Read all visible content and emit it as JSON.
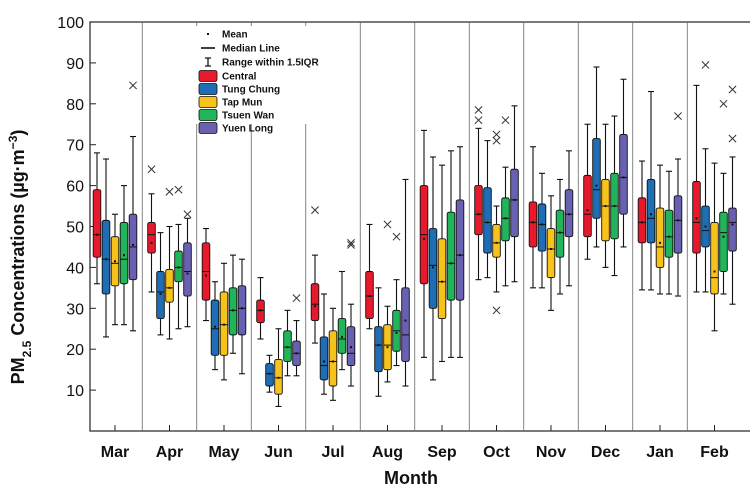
{
  "chart_data": {
    "type": "box",
    "title": "",
    "ylabel": {
      "prefix": "PM",
      "sub": "2.5",
      "middle": " Concentrations (µg·m",
      "sup": "−3",
      "suffix": ")"
    },
    "xlabel": "Month",
    "ylim": [
      0,
      100
    ],
    "yticks": [
      10,
      20,
      30,
      40,
      50,
      60,
      70,
      80,
      90,
      100
    ],
    "legend_placement": "top-left",
    "legend_items": [
      {
        "kind": "mean",
        "label": "Mean"
      },
      {
        "kind": "median",
        "label": "Median Line"
      },
      {
        "kind": "whisker",
        "label": "Range within 1.5IQR"
      }
    ],
    "categories": [
      "Mar",
      "Apr",
      "May",
      "Jun",
      "Jul",
      "Aug",
      "Sep",
      "Oct",
      "Nov",
      "Dec",
      "Jan",
      "Feb"
    ],
    "series": [
      {
        "name": "Central",
        "color": "#e8192c",
        "boxes": [
          {
            "lw": 36,
            "q1": 42.5,
            "med": 48,
            "q3": 59,
            "uw": 68,
            "mean": 48,
            "out": []
          },
          {
            "lw": 34,
            "q1": 43.5,
            "med": 48,
            "q3": 51,
            "uw": 58,
            "mean": 46,
            "out": [
              64
            ]
          },
          {
            "lw": 27,
            "q1": 32,
            "med": 39,
            "q3": 46,
            "uw": 49.5,
            "mean": 38,
            "out": []
          },
          {
            "lw": 22.5,
            "q1": 26.5,
            "med": 29.5,
            "q3": 32,
            "uw": 37.5,
            "mean": 29.5,
            "out": []
          },
          {
            "lw": 21.5,
            "q1": 27,
            "med": 31,
            "q3": 36,
            "uw": 43,
            "mean": 30.5,
            "out": [
              54
            ]
          },
          {
            "lw": 25,
            "q1": 27.5,
            "med": 33,
            "q3": 39,
            "uw": 50.5,
            "mean": 33,
            "out": []
          },
          {
            "lw": 18,
            "q1": 36,
            "med": 48,
            "q3": 60,
            "uw": 73.5,
            "mean": 47,
            "out": []
          },
          {
            "lw": 37,
            "q1": 48,
            "med": 53,
            "q3": 60,
            "uw": 74,
            "mean": 53,
            "out": [
              78.5,
              76
            ]
          },
          {
            "lw": 35,
            "q1": 45,
            "med": 51,
            "q3": 56,
            "uw": 69.5,
            "mean": 51,
            "out": []
          },
          {
            "lw": 42,
            "q1": 47.5,
            "med": 53,
            "q3": 62.5,
            "uw": 75,
            "mean": 54,
            "out": []
          },
          {
            "lw": 34.5,
            "q1": 46,
            "med": 51,
            "q3": 57,
            "uw": 66,
            "mean": 51,
            "out": []
          },
          {
            "lw": 34,
            "q1": 43.5,
            "med": 51,
            "q3": 61,
            "uw": 84.5,
            "mean": 52,
            "out": []
          }
        ]
      },
      {
        "name": "Tung Chung",
        "color": "#1f6db4",
        "boxes": [
          {
            "lw": 23,
            "q1": 33.5,
            "med": 42,
            "q3": 51.5,
            "uw": 66.5,
            "mean": 42,
            "out": []
          },
          {
            "lw": 23.5,
            "q1": 27.5,
            "med": 34,
            "q3": 39,
            "uw": 48.5,
            "mean": 33.5,
            "out": []
          },
          {
            "lw": 15,
            "q1": 18.5,
            "med": 25,
            "q3": 32,
            "uw": 36.5,
            "mean": 25.5,
            "out": []
          },
          {
            "lw": 9.5,
            "q1": 11,
            "med": 14,
            "q3": 16.5,
            "uw": 18.5,
            "mean": 14,
            "out": []
          },
          {
            "lw": 9,
            "q1": 12.5,
            "med": 16,
            "q3": 23,
            "uw": 33.5,
            "mean": 17,
            "out": []
          },
          {
            "lw": 8.5,
            "q1": 14.5,
            "med": 21,
            "q3": 25.5,
            "uw": 35,
            "mean": 21,
            "out": []
          },
          {
            "lw": 12.5,
            "q1": 30,
            "med": 40.5,
            "q3": 49.5,
            "uw": 67,
            "mean": 40,
            "out": []
          },
          {
            "lw": 37.5,
            "q1": 43.5,
            "med": 51,
            "q3": 59.5,
            "uw": 71,
            "mean": 51,
            "out": []
          },
          {
            "lw": 35,
            "q1": 44,
            "med": 50.5,
            "q3": 55.5,
            "uw": 63,
            "mean": 50.5,
            "out": []
          },
          {
            "lw": 45,
            "q1": 52,
            "med": 59,
            "q3": 71.5,
            "uw": 89,
            "mean": 60,
            "out": []
          },
          {
            "lw": 34.5,
            "q1": 46,
            "med": 52,
            "q3": 61.5,
            "uw": 83,
            "mean": 53,
            "out": []
          },
          {
            "lw": 34,
            "q1": 45,
            "med": 49,
            "q3": 55,
            "uw": 69,
            "mean": 50,
            "out": [
              89.5
            ]
          }
        ]
      },
      {
        "name": "Tap Mun",
        "color": "#f7c21a",
        "boxes": [
          {
            "lw": 26,
            "q1": 35.5,
            "med": 41,
            "q3": 47.5,
            "uw": 53,
            "mean": 41.5,
            "out": []
          },
          {
            "lw": 22.5,
            "q1": 31.5,
            "med": 35,
            "q3": 39.5,
            "uw": 50,
            "mean": 35,
            "out": [
              58.5
            ]
          },
          {
            "lw": 12.5,
            "q1": 18.5,
            "med": 26,
            "q3": 34,
            "uw": 41,
            "mean": 26,
            "out": []
          },
          {
            "lw": 6,
            "q1": 9,
            "med": 13,
            "q3": 17.5,
            "uw": 25,
            "mean": 13,
            "out": []
          },
          {
            "lw": 7.5,
            "q1": 11,
            "med": 17,
            "q3": 24.5,
            "uw": 30,
            "mean": 17,
            "out": []
          },
          {
            "lw": 12,
            "q1": 15,
            "med": 21,
            "q3": 26,
            "uw": 30.5,
            "mean": 20.5,
            "out": [
              50.5
            ]
          },
          {
            "lw": 17,
            "q1": 27.5,
            "med": 36.5,
            "q3": 47,
            "uw": 65,
            "mean": 36.5,
            "out": []
          },
          {
            "lw": 34,
            "q1": 42.5,
            "med": 46,
            "q3": 50.5,
            "uw": 55,
            "mean": 46,
            "out": [
              72.5,
              71,
              29.5
            ]
          },
          {
            "lw": 29.5,
            "q1": 37.5,
            "med": 44.5,
            "q3": 49.5,
            "uw": 57.5,
            "mean": 44.5,
            "out": []
          },
          {
            "lw": 40,
            "q1": 46.5,
            "med": 55,
            "q3": 61.5,
            "uw": 75,
            "mean": 55,
            "out": []
          },
          {
            "lw": 33.5,
            "q1": 40,
            "med": 45,
            "q3": 54.5,
            "uw": 65,
            "mean": 46,
            "out": []
          },
          {
            "lw": 24.5,
            "q1": 33.5,
            "med": 37.5,
            "q3": 51,
            "uw": 65.5,
            "mean": 39,
            "out": []
          }
        ]
      },
      {
        "name": "Tsuen Wan",
        "color": "#21b45b",
        "boxes": [
          {
            "lw": 26,
            "q1": 36,
            "med": 42,
            "q3": 51,
            "uw": 60,
            "mean": 43,
            "out": []
          },
          {
            "lw": 25,
            "q1": 36.5,
            "med": 40,
            "q3": 44,
            "uw": 50.5,
            "mean": 40,
            "out": [
              59
            ]
          },
          {
            "lw": 19,
            "q1": 23.5,
            "med": 29.5,
            "q3": 35,
            "uw": 43,
            "mean": 29.5,
            "out": []
          },
          {
            "lw": 13.5,
            "q1": 17,
            "med": 20.5,
            "q3": 24.5,
            "uw": 29.5,
            "mean": 20.5,
            "out": []
          },
          {
            "lw": 15,
            "q1": 19,
            "med": 22.5,
            "q3": 27.5,
            "uw": 39,
            "mean": 23,
            "out": []
          },
          {
            "lw": 16,
            "q1": 19.5,
            "med": 24.5,
            "q3": 29.5,
            "uw": 37,
            "mean": 24,
            "out": [
              47.5
            ]
          },
          {
            "lw": 18,
            "q1": 32,
            "med": 41,
            "q3": 53.5,
            "uw": 68.5,
            "mean": 41,
            "out": []
          },
          {
            "lw": 35.5,
            "q1": 46.5,
            "med": 52,
            "q3": 57,
            "uw": 64.5,
            "mean": 52,
            "out": [
              76
            ]
          },
          {
            "lw": 33.5,
            "q1": 42.5,
            "med": 48.5,
            "q3": 54,
            "uw": 61.5,
            "mean": 48.5,
            "out": []
          },
          {
            "lw": 38,
            "q1": 47,
            "med": 55,
            "q3": 63,
            "uw": 77,
            "mean": 55,
            "out": []
          },
          {
            "lw": 33.5,
            "q1": 42.5,
            "med": 47.5,
            "q3": 54,
            "uw": 63.5,
            "mean": 47.5,
            "out": []
          },
          {
            "lw": 33.5,
            "q1": 39,
            "med": 48.5,
            "q3": 53.5,
            "uw": 63,
            "mean": 47.5,
            "out": [
              80
            ]
          }
        ]
      },
      {
        "name": "Yuen Long",
        "color": "#6860b0",
        "boxes": [
          {
            "lw": 24.5,
            "q1": 37,
            "med": 45,
            "q3": 53,
            "uw": 72,
            "mean": 45.5,
            "out": [
              84.5
            ]
          },
          {
            "lw": 25.5,
            "q1": 33,
            "med": 39,
            "q3": 46,
            "uw": 52,
            "mean": 38.5,
            "out": [
              53
            ]
          },
          {
            "lw": 14,
            "q1": 23.5,
            "med": 30,
            "q3": 35.5,
            "uw": 42,
            "mean": 30,
            "out": []
          },
          {
            "lw": 13.5,
            "q1": 16,
            "med": 19,
            "q3": 22,
            "uw": 27,
            "mean": 19,
            "out": [
              32.5
            ]
          },
          {
            "lw": 11,
            "q1": 16,
            "med": 19,
            "q3": 25.5,
            "uw": 31,
            "mean": 20.5,
            "out": [
              46,
              45.5
            ]
          },
          {
            "lw": 11,
            "q1": 17,
            "med": 23.5,
            "q3": 35,
            "uw": 61.5,
            "mean": 27,
            "out": []
          },
          {
            "lw": 18,
            "q1": 32,
            "med": 43,
            "q3": 56.5,
            "uw": 69.5,
            "mean": 43,
            "out": []
          },
          {
            "lw": 36.5,
            "q1": 47.5,
            "med": 56.5,
            "q3": 64,
            "uw": 79.5,
            "mean": 56.5,
            "out": []
          },
          {
            "lw": 35.5,
            "q1": 47.5,
            "med": 53,
            "q3": 59,
            "uw": 68.5,
            "mean": 53,
            "out": []
          },
          {
            "lw": 45,
            "q1": 53,
            "med": 62,
            "q3": 72.5,
            "uw": 86,
            "mean": 62,
            "out": []
          },
          {
            "lw": 33,
            "q1": 43.5,
            "med": 51.5,
            "q3": 57.5,
            "uw": 66.5,
            "mean": 51.5,
            "out": [
              77
            ]
          },
          {
            "lw": 31,
            "q1": 44,
            "med": 51,
            "q3": 54.5,
            "uw": 67,
            "mean": 50.5,
            "out": [
              83.5,
              71.5
            ]
          }
        ]
      }
    ]
  }
}
